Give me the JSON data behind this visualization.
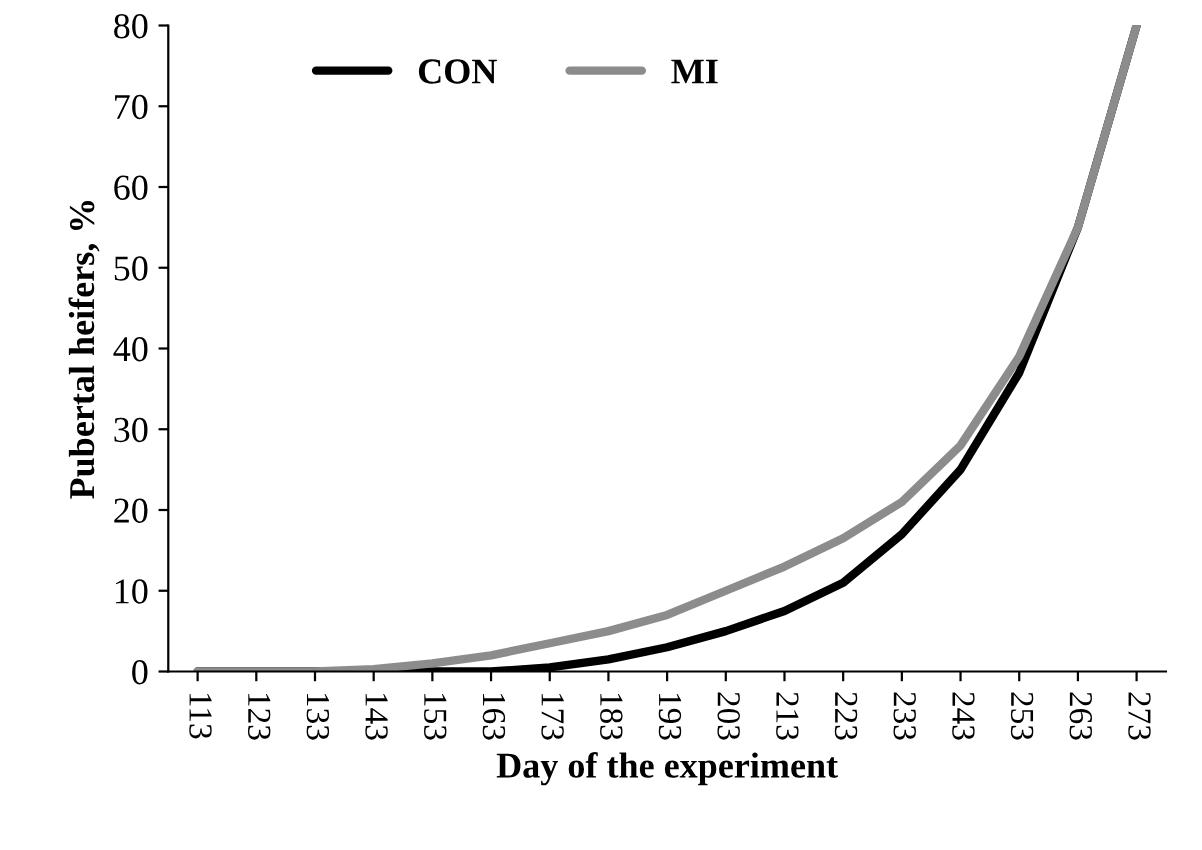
{
  "chart_data": {
    "type": "line",
    "xlabel": "Day of the experiment",
    "ylabel": "Pubertal heifers, %",
    "categories": [
      "113",
      "123",
      "133",
      "143",
      "153",
      "163",
      "173",
      "183",
      "193",
      "203",
      "213",
      "223",
      "233",
      "243",
      "253",
      "263",
      "273"
    ],
    "series": [
      {
        "name": "CON",
        "color": "#000000",
        "values": [
          0,
          0,
          0,
          0,
          0,
          0,
          0.5,
          1.5,
          3,
          5,
          7.5,
          11,
          17,
          25,
          37,
          55,
          80
        ]
      },
      {
        "name": "MI",
        "color": "#8c8c8c",
        "values": [
          0,
          0,
          0,
          0.3,
          1,
          2,
          3.5,
          5,
          7,
          10,
          13,
          16.5,
          21,
          28,
          39,
          55,
          80
        ]
      }
    ],
    "ylim": [
      0,
      80
    ],
    "yticks": [
      0,
      10,
      20,
      30,
      40,
      50,
      60,
      70,
      80
    ],
    "grid": false,
    "legend": "top",
    "marker": "none",
    "line_style": "solid"
  }
}
